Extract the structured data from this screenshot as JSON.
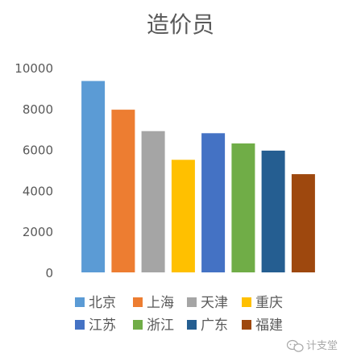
{
  "chart_data": {
    "type": "bar",
    "title": "造价员",
    "categories": [
      "北京",
      "上海",
      "天津",
      "重庆",
      "江苏",
      "浙江",
      "广东",
      "福建"
    ],
    "values": [
      9350,
      7950,
      6900,
      5500,
      6800,
      6300,
      5950,
      4800
    ],
    "colors": [
      "#5b9bd5",
      "#ed7d31",
      "#a5a5a5",
      "#ffc000",
      "#4472c4",
      "#70ad47",
      "#255e91",
      "#9e480e"
    ],
    "ylim": [
      0,
      10000
    ],
    "yticks": [
      0,
      2000,
      4000,
      6000,
      8000,
      10000
    ],
    "grid": false,
    "legend_position": "bottom",
    "xlabel": "",
    "ylabel": ""
  },
  "watermark": {
    "text": "计支堂",
    "icon": "wechat-bubble-icon"
  }
}
